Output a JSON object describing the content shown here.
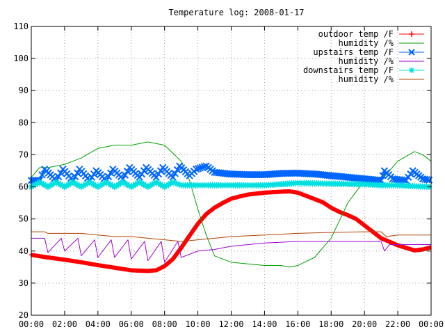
{
  "chart_data": {
    "type": "line",
    "title": "Temperature log: 2008-01-17",
    "xlabel": "",
    "ylabel": "",
    "xlim": [
      0,
      24
    ],
    "ylim": [
      20,
      110
    ],
    "x_ticks": [
      "00:00",
      "02:00",
      "04:00",
      "06:00",
      "08:00",
      "10:00",
      "12:00",
      "14:00",
      "16:00",
      "18:00",
      "20:00",
      "22:00",
      "00:00"
    ],
    "y_ticks": [
      "20",
      "30",
      "40",
      "50",
      "60",
      "70",
      "80",
      "90",
      "100",
      "110"
    ],
    "grid": true,
    "legend_position": "top-right",
    "series": [
      {
        "name": "outdoor temp /F",
        "color": "#ff0000",
        "marker": "plus",
        "x": [
          0,
          1,
          2,
          3,
          4,
          5,
          6,
          7,
          7.5,
          8,
          8.5,
          9,
          9.5,
          10,
          10.5,
          11,
          11.5,
          12,
          12.5,
          13,
          14,
          15,
          15.5,
          16,
          16.5,
          17,
          17.5,
          18,
          18.5,
          19,
          19.5,
          20,
          21,
          22,
          23,
          23.5,
          24
        ],
        "y": [
          38.8,
          38,
          37.3,
          36.5,
          35.6,
          34.8,
          34,
          33.8,
          34,
          35.3,
          37.5,
          41,
          44.8,
          48.5,
          51.5,
          53.5,
          55,
          56.3,
          57,
          57.6,
          58.2,
          58.5,
          58.6,
          58.2,
          57.2,
          56.2,
          55.2,
          53.5,
          52.2,
          51.2,
          50,
          48,
          44,
          41.8,
          40.2,
          40.5,
          41.2
        ]
      },
      {
        "name": "humidity /%",
        "color": "#00a000",
        "marker": "none",
        "x": [
          0,
          0.5,
          1,
          2,
          3,
          4,
          5,
          6,
          7,
          8,
          9,
          9.5,
          10,
          10.5,
          11,
          12,
          13,
          14,
          15,
          15.5,
          16,
          17,
          18,
          19,
          20,
          21,
          21.5,
          22,
          23,
          23.5,
          24
        ],
        "y": [
          63,
          66,
          66,
          67,
          69,
          72,
          73,
          73,
          74,
          73,
          68,
          62,
          53,
          45,
          38.5,
          36.5,
          36,
          35.5,
          35.5,
          35,
          35.5,
          38,
          44,
          55,
          62,
          62,
          65,
          68,
          71,
          70,
          68
        ]
      },
      {
        "name": "upstairs temp /F",
        "color": "#0066ff",
        "marker": "x",
        "x": [
          0,
          0.5,
          0.8,
          1.5,
          1.9,
          2.5,
          2.9,
          3.5,
          3.9,
          4.5,
          4.9,
          5.5,
          5.9,
          6.5,
          6.9,
          7.5,
          7.9,
          8.5,
          8.9,
          9.5,
          9.9,
          10.5,
          11,
          12,
          13,
          14,
          15,
          16,
          17,
          18,
          19,
          20,
          21,
          21.2,
          21.7,
          22.5,
          22.9,
          23.5,
          24
        ],
        "y": [
          62,
          62,
          65.5,
          62,
          65.5,
          62,
          65.5,
          62,
          65,
          62,
          65.5,
          62.5,
          66,
          63,
          66,
          63,
          66,
          63,
          66.5,
          63.5,
          65.5,
          66.5,
          64.5,
          64,
          63.8,
          63.8,
          64.2,
          64.3,
          64,
          63.5,
          63,
          62.5,
          62,
          65,
          62.5,
          62,
          65,
          62.5,
          62
        ]
      },
      {
        "name": "humidity /%",
        "color": "#a000d0",
        "marker": "none",
        "x": [
          0,
          0.8,
          1,
          1.8,
          2,
          2.8,
          3,
          3.8,
          4,
          4.8,
          5,
          5.8,
          6,
          6.8,
          7,
          7.8,
          8,
          8.8,
          9,
          10,
          11,
          12,
          14,
          16,
          18,
          20,
          21,
          21.2,
          21.5,
          22,
          23,
          24
        ],
        "y": [
          44,
          44,
          39.5,
          44,
          40,
          44,
          38.5,
          43.5,
          38,
          43.5,
          38,
          43.5,
          37.5,
          43,
          37,
          43,
          36.5,
          43,
          38,
          40,
          40.5,
          41.5,
          42.5,
          43,
          43,
          43,
          43,
          40,
          42,
          42,
          42,
          42
        ]
      },
      {
        "name": "downstairs temp /F",
        "color": "#00e0e0",
        "marker": "star",
        "x": [
          0,
          0.5,
          1,
          1.5,
          2,
          2.5,
          3,
          3.5,
          4,
          4.5,
          5,
          5.5,
          6,
          6.5,
          7,
          7.5,
          8,
          8.5,
          9,
          10,
          11,
          12,
          14,
          16,
          18,
          20,
          21,
          22,
          23,
          24
        ],
        "y": [
          60,
          61.5,
          60,
          61.5,
          60,
          61.5,
          60,
          61.5,
          60,
          61.5,
          60,
          61.5,
          60,
          61.5,
          60,
          61.5,
          60,
          61.5,
          60.5,
          60.5,
          60.5,
          60.5,
          60.5,
          61.2,
          61,
          60.8,
          60.5,
          60.5,
          60.2,
          60
        ]
      },
      {
        "name": "humidity /%",
        "color": "#b04000",
        "marker": "none",
        "x": [
          0,
          0.8,
          1,
          2,
          3,
          4,
          5,
          6,
          7,
          8,
          9,
          10,
          11,
          12,
          14,
          16,
          18,
          20,
          21,
          21.3,
          22,
          23,
          24
        ],
        "y": [
          46,
          46,
          45.5,
          45.5,
          45.5,
          45,
          44.5,
          44.5,
          44,
          43.5,
          43,
          43.5,
          44,
          44.5,
          45,
          45.5,
          45.8,
          46,
          46,
          44.5,
          45,
          45,
          45
        ]
      }
    ]
  }
}
